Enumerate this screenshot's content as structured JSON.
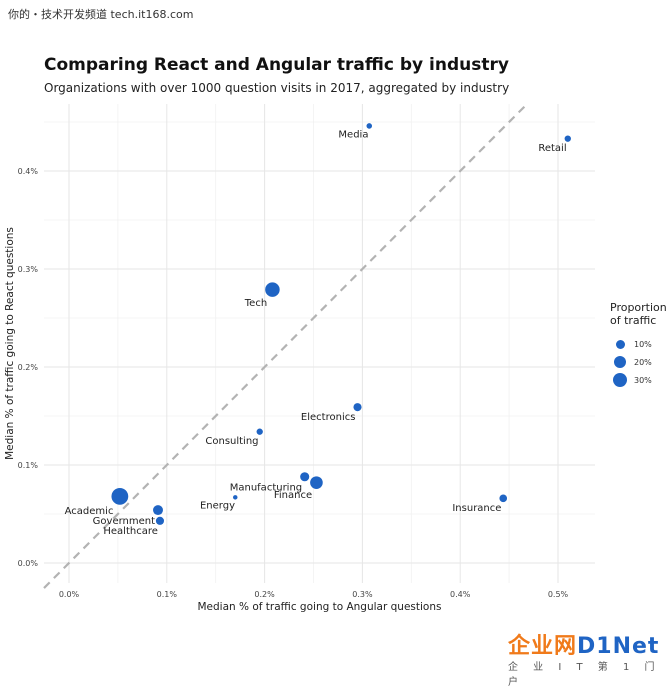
{
  "watermark_top": "你的・技术开发频道 tech.it168.com",
  "title": "Comparing React and Angular traffic by industry",
  "subtitle": "Organizations with over 1000 question visits in 2017, aggregated by industry",
  "brand": {
    "left": "企业网",
    "right": "D1Net",
    "tagline": "企 业 I T 第 1 门 户"
  },
  "legend": {
    "title_line1": "Proportion",
    "title_line2": "of traffic",
    "items": [
      {
        "label": "10%",
        "value": 10
      },
      {
        "label": "20%",
        "value": 20
      },
      {
        "label": "30%",
        "value": 30
      }
    ]
  },
  "colors": {
    "point": "#1f64c4",
    "grid": "#e6e6e6",
    "diagonal": "#b3b3b3"
  },
  "chart_data": {
    "type": "scatter",
    "title": "Comparing React and Angular traffic by industry",
    "subtitle": "Organizations with over 1000 question visits in 2017, aggregated by industry",
    "xlabel": "Median % of traffic going to Angular questions",
    "ylabel": "Median % of traffic going to React questions",
    "xlim": [
      -0.0024,
      0.0054
    ],
    "ylim": [
      -0.0002,
      0.0047
    ],
    "xticks": [
      0,
      0.001,
      0.002,
      0.003,
      0.004,
      0.005
    ],
    "xtick_labels": [
      "0.0%",
      "0.1%",
      "0.2%",
      "0.3%",
      "0.4%",
      "0.5%"
    ],
    "yticks": [
      0,
      0.001,
      0.002,
      0.003,
      0.004
    ],
    "ytick_labels": [
      "0.0%",
      "0.1%",
      "0.2%",
      "0.3%",
      "0.4%"
    ],
    "reference_line": "y = x (dashed)",
    "grid": true,
    "legend_position": "right",
    "points": [
      {
        "label": "Media",
        "x": 0.00307,
        "y": 0.00446,
        "size": 2,
        "label_pos": "below-left"
      },
      {
        "label": "Retail",
        "x": 0.0051,
        "y": 0.00433,
        "size": 3,
        "label_pos": "below-left"
      },
      {
        "label": "Tech",
        "x": 0.00208,
        "y": 0.00279,
        "size": 25,
        "label_pos": "below-left"
      },
      {
        "label": "Electronics",
        "x": 0.00295,
        "y": 0.00159,
        "size": 6,
        "label_pos": "below-left"
      },
      {
        "label": "Consulting",
        "x": 0.00195,
        "y": 0.00134,
        "size": 3,
        "label_pos": "below-left"
      },
      {
        "label": "Manufacturing",
        "x": 0.00241,
        "y": 0.00088,
        "size": 8,
        "label_pos": "below-left"
      },
      {
        "label": "Finance",
        "x": 0.00253,
        "y": 0.00082,
        "size": 18,
        "label_pos": "below-left"
      },
      {
        "label": "Energy",
        "x": 0.0017,
        "y": 0.00067,
        "size": 1,
        "label_pos": "below-left"
      },
      {
        "label": "Insurance",
        "x": 0.00444,
        "y": 0.00066,
        "size": 5,
        "label_pos": "below-left"
      },
      {
        "label": "Academic",
        "x": 0.00052,
        "y": 0.00068,
        "size": 35,
        "label_pos": "below-left"
      },
      {
        "label": "Government",
        "x": 0.00091,
        "y": 0.00054,
        "size": 10,
        "label_pos": "below-left"
      },
      {
        "label": "Healthcare",
        "x": 0.00093,
        "y": 0.00043,
        "size": 6,
        "label_pos": "below-left"
      }
    ]
  }
}
